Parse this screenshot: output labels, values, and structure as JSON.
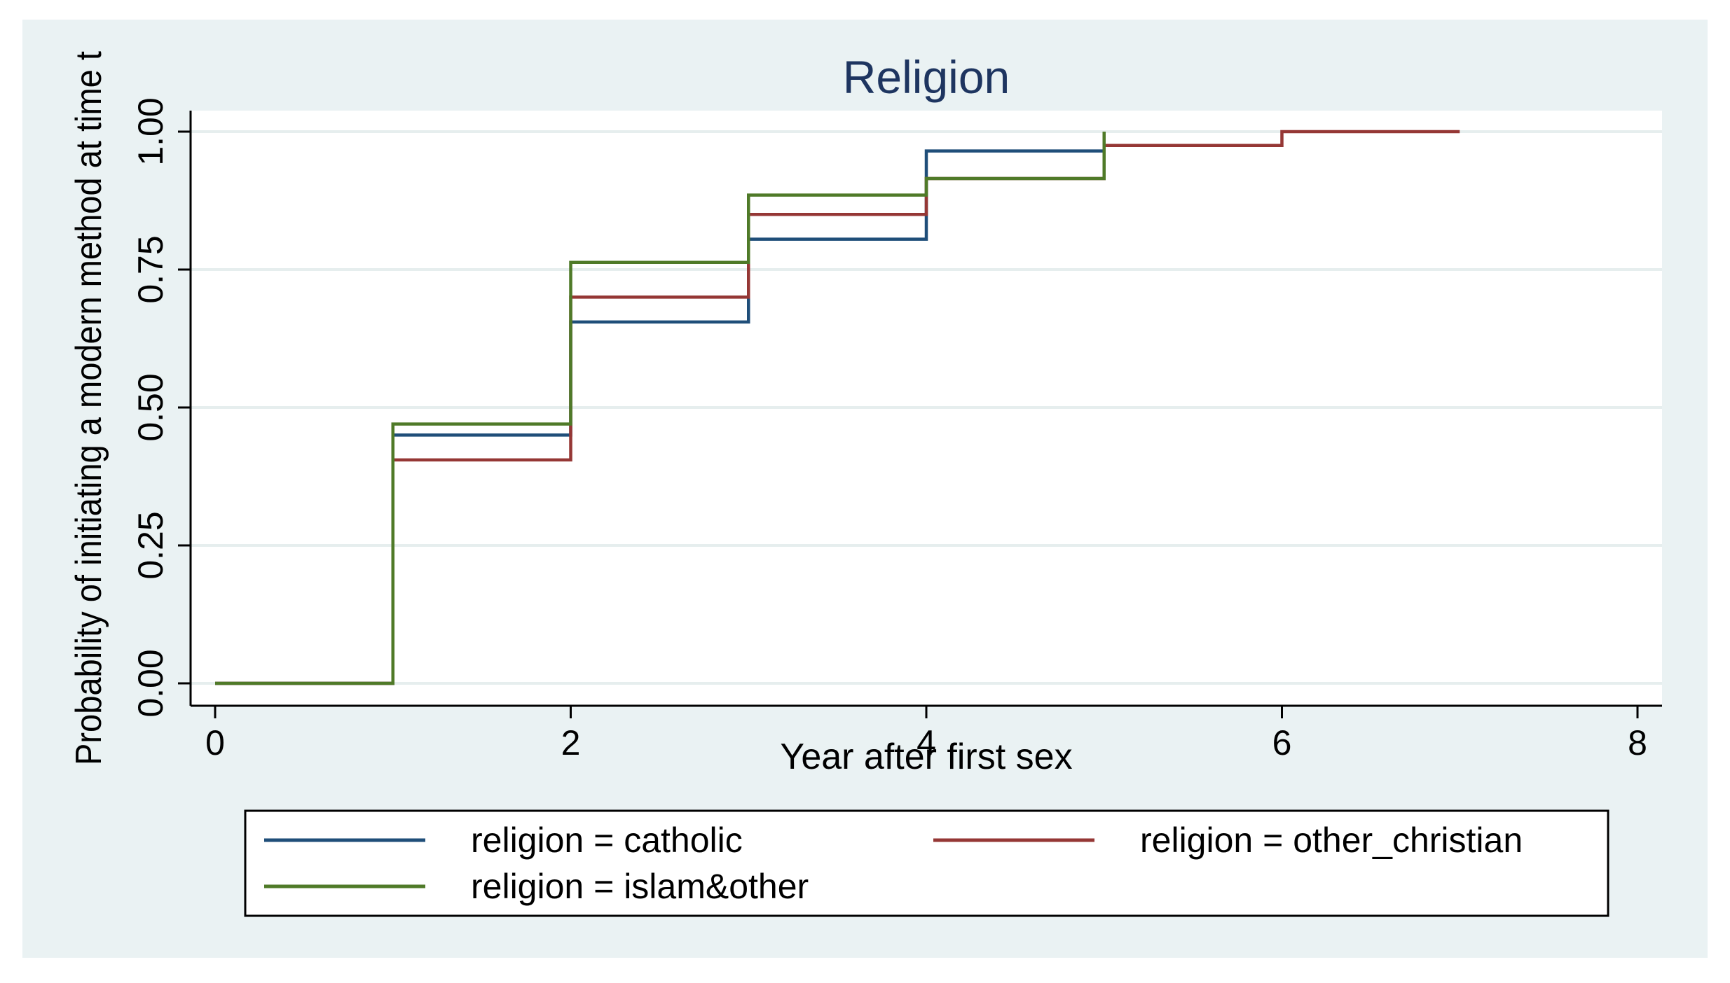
{
  "chart_data": {
    "type": "line",
    "step": true,
    "title": "Religion",
    "xlabel": "Year after first sex",
    "ylabel": "Probability of initiating a modern method at time t",
    "xlim": [
      0,
      8
    ],
    "ylim": [
      0,
      1
    ],
    "xticks": [
      0,
      2,
      4,
      6,
      8
    ],
    "yticks": [
      0,
      0.25,
      0.5,
      0.75,
      1.0
    ],
    "xtick_labels": [
      "0",
      "2",
      "4",
      "6",
      "8"
    ],
    "ytick_labels": [
      "0.00",
      "0.25",
      "0.50",
      "0.75",
      "1.00"
    ],
    "grid": true,
    "legend_position": "bottom",
    "series": [
      {
        "name": "religion = catholic",
        "color": "#1f4e79",
        "x": [
          0,
          1,
          2,
          3,
          4,
          5
        ],
        "y": [
          0,
          0.45,
          0.655,
          0.805,
          0.965,
          1.0
        ]
      },
      {
        "name": "religion = other_christian",
        "color": "#953735",
        "x": [
          0,
          1,
          2,
          3,
          4,
          5,
          6,
          7
        ],
        "y": [
          0,
          0.405,
          0.7,
          0.85,
          0.915,
          0.975,
          1.0,
          1.0
        ]
      },
      {
        "name": "religion = islam&other",
        "color": "#4f7a28",
        "x": [
          0,
          1,
          2,
          3,
          4,
          5
        ],
        "y": [
          0,
          0.47,
          0.763,
          0.885,
          0.915,
          1.0
        ]
      }
    ]
  }
}
